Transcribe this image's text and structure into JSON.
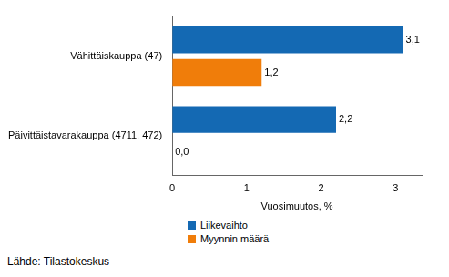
{
  "chart_data": {
    "type": "bar",
    "orientation": "horizontal",
    "categories": [
      "Vähittäiskauppa (47)",
      "Päivittäistavarakauppa (4711, 472)"
    ],
    "series": [
      {
        "name": "Liikevaihto",
        "color": "#1469b3",
        "values": [
          3.1,
          2.2
        ],
        "value_labels": [
          "3,1",
          "2,2"
        ]
      },
      {
        "name": "Myynnin määrä",
        "color": "#f07d0a",
        "values": [
          1.2,
          0.0
        ],
        "value_labels": [
          "1,2",
          "0,0"
        ]
      }
    ],
    "x_label": "Vuosimuutos, %",
    "xlim": [
      0,
      3.35
    ],
    "xticks": [
      0,
      1,
      2,
      3
    ],
    "grid": false,
    "data_labels": true,
    "legend": "bottom-left",
    "annotations": [
      "Lähde: Tilastokeskus"
    ]
  }
}
